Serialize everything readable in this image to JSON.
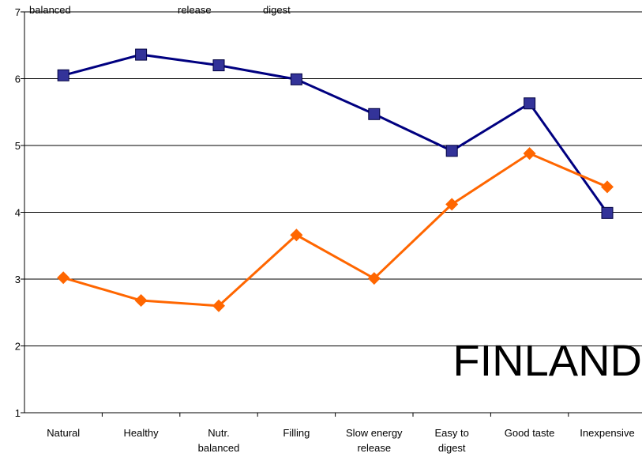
{
  "chart_data": {
    "type": "line",
    "categories": [
      "Natural",
      "Healthy",
      "Nutr.\nbalanced",
      "Filling",
      "Slow energy\nrelease",
      "Easy to\ndigest",
      "Good taste",
      "Inexpensive"
    ],
    "series": [
      {
        "color": "#000080",
        "marker_color": "#333399",
        "marker": "square",
        "values": [
          6.05,
          6.36,
          6.2,
          5.99,
          5.47,
          4.92,
          5.63,
          3.99
        ]
      },
      {
        "color": "#ff6600",
        "marker_color": "#ff6600",
        "marker": "diamond",
        "values": [
          3.02,
          2.68,
          2.6,
          3.66,
          3.01,
          4.12,
          4.88,
          4.38
        ]
      }
    ],
    "ylim": [
      1,
      7
    ],
    "yticks": [
      1,
      2,
      3,
      4,
      5,
      6,
      7
    ],
    "grid": true,
    "annotations": [
      "balanced",
      "release",
      "digest",
      "FINLAND"
    ]
  }
}
